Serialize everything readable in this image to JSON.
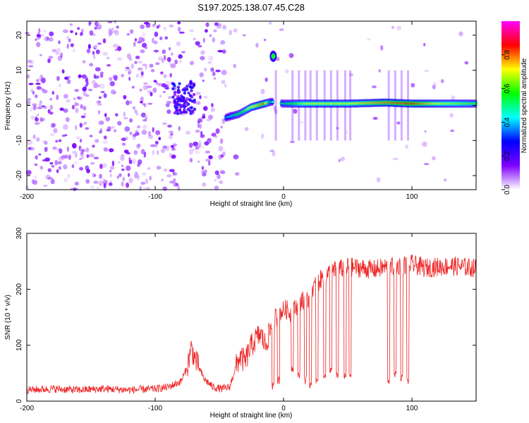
{
  "chart_data": [
    {
      "type": "heatmap",
      "title": "S197.2025.138.07.45.C28",
      "xlabel": "Height of straight line (km)",
      "ylabel": "Frequency (Hz)",
      "xlim": [
        -200,
        150
      ],
      "ylim": [
        -24,
        24
      ],
      "x_ticks": [
        -200,
        -100,
        0,
        100
      ],
      "y_ticks": [
        -20,
        -10,
        0,
        10,
        20
      ],
      "colorbar": {
        "label": "Normalized spectral amplitude",
        "range": [
          0,
          1
        ],
        "ticks": [
          0,
          0.2,
          0.4,
          0.6,
          0.8
        ],
        "colormap": [
          "#ffffff",
          "#7f00ff",
          "#0000ff",
          "#00ffff",
          "#00ff00",
          "#ffff00",
          "#ff0000",
          "#ff00ff"
        ]
      },
      "ridge": {
        "x": [
          -45,
          -40,
          -35,
          -30,
          -25,
          -20,
          -15,
          -10,
          -8,
          -5,
          0,
          20,
          50,
          80,
          100,
          120,
          150
        ],
        "frequency": [
          -3.5,
          -3,
          -2.5,
          -1.5,
          -0.5,
          0,
          0.5,
          1,
          1,
          0.8,
          0.5,
          0.5,
          0.5,
          0.8,
          0.5,
          0.5,
          0.5
        ],
        "amplitude": [
          0.4,
          0.5,
          0.55,
          0.6,
          0.7,
          0.75,
          0.8,
          0.5,
          0.45,
          0.5,
          0.5,
          0.7,
          0.7,
          0.8,
          0.85,
          0.7,
          0.6
        ]
      },
      "blob": {
        "x": -8,
        "frequency": 14,
        "amplitude": 0.55
      }
    },
    {
      "type": "line",
      "xlabel": "Height of straight line (km)",
      "ylabel": "SNR (10 * v/v)",
      "xlim": [
        -200,
        150
      ],
      "ylim": [
        0,
        300
      ],
      "x_ticks": [
        -200,
        -100,
        0,
        100
      ],
      "y_ticks": [
        0,
        100,
        200,
        300
      ],
      "color": "#ee2222",
      "series": [
        {
          "x": [
            -200,
            -180,
            -160,
            -140,
            -120,
            -100,
            -90,
            -80,
            -75,
            -72,
            -68,
            -62,
            -55,
            -48,
            -42,
            -38,
            -34,
            -30,
            -26,
            -22,
            -18,
            -14,
            -10,
            -6,
            -2,
            2,
            6,
            10,
            14,
            18,
            22,
            26,
            30,
            36,
            42,
            50,
            60,
            70,
            80,
            90,
            100,
            110,
            120,
            130,
            140,
            150
          ],
          "y": [
            20,
            22,
            20,
            22,
            20,
            22,
            25,
            35,
            60,
            95,
            70,
            40,
            25,
            22,
            25,
            55,
            80,
            70,
            95,
            110,
            120,
            100,
            130,
            150,
            160,
            165,
            155,
            170,
            180,
            175,
            200,
            210,
            220,
            230,
            235,
            240,
            238,
            235,
            240,
            242,
            245,
            238,
            240,
            242,
            240,
            238
          ]
        }
      ],
      "dropouts": [
        {
          "x": -8,
          "y": 20
        },
        {
          "x": -4,
          "y": 30
        },
        {
          "x": 7,
          "y": 50
        },
        {
          "x": 12,
          "y": 40
        },
        {
          "x": 17,
          "y": 30
        },
        {
          "x": 21,
          "y": 20
        },
        {
          "x": 26,
          "y": 30
        },
        {
          "x": 32,
          "y": 40
        },
        {
          "x": 37,
          "y": 50
        },
        {
          "x": 42,
          "y": 40
        },
        {
          "x": 48,
          "y": 35
        },
        {
          "x": 52,
          "y": 40
        },
        {
          "x": 82,
          "y": 30
        },
        {
          "x": 87,
          "y": 40
        },
        {
          "x": 92,
          "y": 35
        },
        {
          "x": 97,
          "y": 30
        }
      ]
    }
  ],
  "colors": {
    "line": "#ee2222",
    "axis": "#000000",
    "background": "#ffffff"
  }
}
